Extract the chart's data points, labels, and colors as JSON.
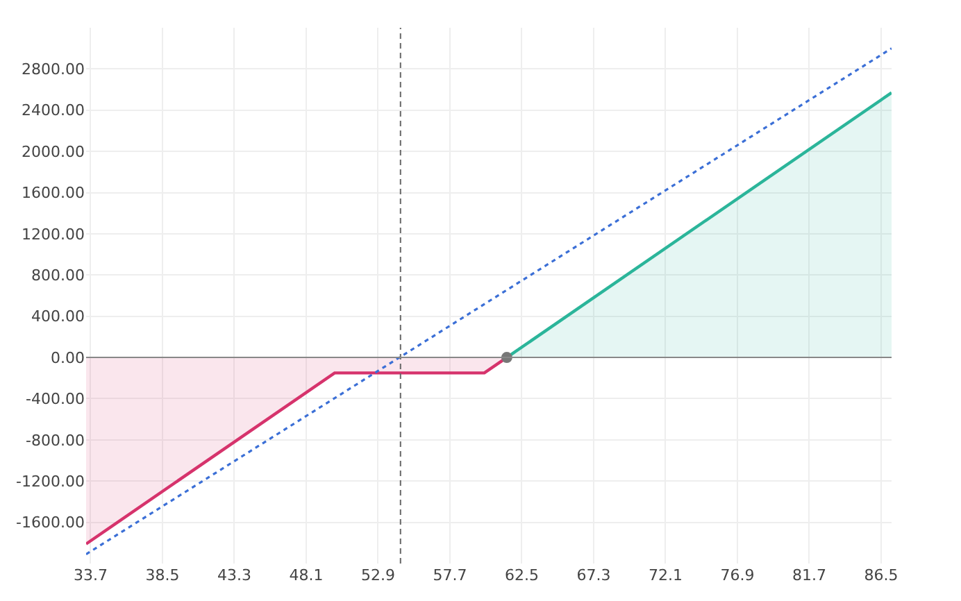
{
  "chart_data": {
    "type": "area",
    "series": [
      {
        "color": "#d6336c",
        "x": [
          33.4,
          50.0,
          60.0,
          61.5
        ],
        "values": [
          -1810,
          -150,
          -150,
          0
        ]
      },
      {
        "color": "#2bb59a",
        "x": [
          61.5,
          87.2
        ],
        "values": [
          0,
          2570
        ]
      },
      {
        "type": "line",
        "color": "#3b6fd6",
        "line_style": "dotted",
        "x": [
          33.4,
          87.2
        ],
        "values": [
          -1910,
          3000
        ]
      },
      {
        "type": "scatter",
        "color": "#777777",
        "marker": "circle",
        "x": [
          61.5
        ],
        "values": [
          0
        ]
      }
    ],
    "xlim": [
      33.4,
      87.2
    ],
    "ylim": [
      -2000,
      3200
    ],
    "xticks": [
      33.7,
      38.5,
      43.3,
      48.1,
      52.9,
      57.7,
      62.5,
      67.3,
      72.1,
      76.9,
      81.7,
      86.5
    ],
    "yticks": [
      {
        "value": -1600,
        "label": "-1600.00"
      },
      {
        "value": -1200,
        "label": "-1200.00"
      },
      {
        "value": -800,
        "label": "-800.00"
      },
      {
        "value": -400,
        "label": "-400.00"
      },
      {
        "value": 0,
        "label": "0.00"
      },
      {
        "value": 400,
        "label": "400.00"
      },
      {
        "value": 800,
        "label": "800.00"
      },
      {
        "value": 1200,
        "label": "1200.00"
      },
      {
        "value": 1600,
        "label": "1600.00"
      },
      {
        "value": 2000,
        "label": "2000.00"
      },
      {
        "value": 2400,
        "label": "2400.00"
      },
      {
        "value": 2800,
        "label": "2800.00"
      }
    ],
    "ref_lines": [
      {
        "axis": "x",
        "value": 54.4,
        "color": "#666666",
        "line_style": "dashed"
      },
      {
        "axis": "y",
        "value": 0,
        "color": "#888888",
        "line_style": "solid"
      }
    ],
    "grid": true
  }
}
